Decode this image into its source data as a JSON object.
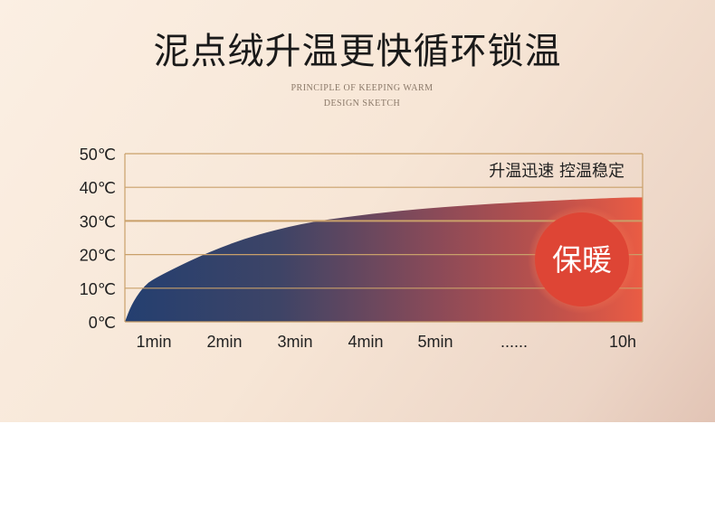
{
  "header": {
    "title": "泥点绒升温更快循环锁温",
    "subtitle_line1": "PRINCIPLE OF KEEPING WARM",
    "subtitle_line2": "DESIGN SKETCH"
  },
  "chart_data": {
    "type": "area",
    "title": "",
    "xlabel": "",
    "ylabel": "",
    "categories": [
      "1min",
      "2min",
      "3min",
      "4min",
      "5min",
      "......",
      "10h"
    ],
    "y_ticks": [
      "0℃",
      "10℃",
      "20℃",
      "30℃",
      "40℃",
      "50℃"
    ],
    "ylim": [
      0,
      50
    ],
    "start_value": 0,
    "values": [
      13,
      23,
      29,
      32,
      34,
      35.5,
      37
    ],
    "annotation": "升温迅速 控温稳定",
    "badge": "保暖",
    "grid": true,
    "colors": {
      "start": "#2a3f6e",
      "mid": "#8a4a58",
      "end": "#ea5c44",
      "grid": "#c9a06a",
      "badge": "#de4535"
    }
  }
}
